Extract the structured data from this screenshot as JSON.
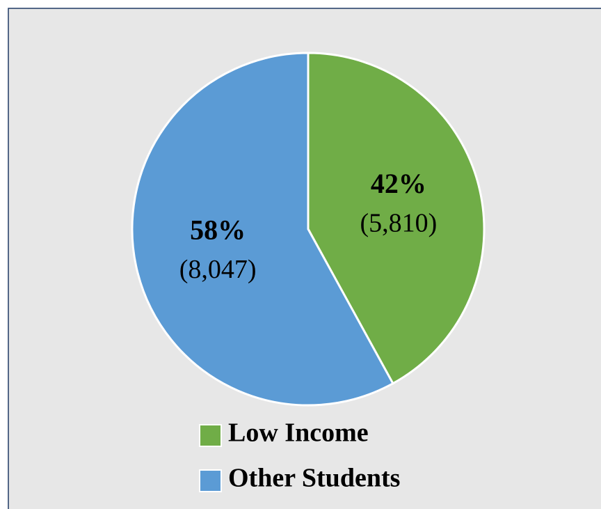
{
  "chart_data": {
    "type": "pie",
    "categories": [
      "Low Income",
      "Other Students"
    ],
    "values": [
      42,
      58
    ],
    "value_labels": [
      "42%",
      "58%"
    ],
    "count_labels": [
      "(5,810)",
      "(8,047)"
    ],
    "colors": [
      "#70ad47",
      "#5b9bd5"
    ],
    "legend": "bottom"
  }
}
